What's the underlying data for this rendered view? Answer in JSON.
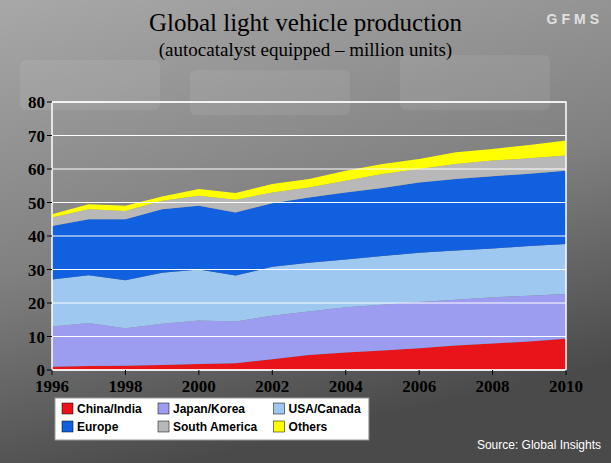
{
  "chart_data": {
    "type": "area",
    "title": "Global light vehicle production",
    "subtitle": "(autocatalyst equipped – million units)",
    "logo": "GFMS",
    "source": "Source: Global Insights",
    "stacked": true,
    "grid": true,
    "legend": "bottom",
    "x": [
      1996,
      1997,
      1998,
      1999,
      2000,
      2001,
      2002,
      2003,
      2004,
      2005,
      2006,
      2007,
      2008,
      2009,
      2010
    ],
    "xlim": [
      1996,
      2010
    ],
    "xticks": [
      1996,
      1998,
      2000,
      2002,
      2004,
      2006,
      2008,
      2010
    ],
    "ylim": [
      0,
      80
    ],
    "yticks": [
      0,
      10,
      20,
      30,
      40,
      50,
      60,
      70,
      80
    ],
    "series": [
      {
        "name": "China/India",
        "color": "#e8141a",
        "values": [
          1,
          1.2,
          1.3,
          1.5,
          1.8,
          2,
          3.2,
          4.5,
          5.2,
          5.8,
          6.5,
          7.3,
          7.9,
          8.5,
          9.3
        ]
      },
      {
        "name": "Japan/Korea",
        "color": "#9c9cf0",
        "values": [
          12,
          12.8,
          11.2,
          12.3,
          13,
          12.5,
          13,
          13,
          13.5,
          13.7,
          13.8,
          13.7,
          13.8,
          13.7,
          13.4
        ]
      },
      {
        "name": "USA/Canada",
        "color": "#9ec8f0",
        "values": [
          14,
          14.3,
          14.3,
          15.2,
          15.2,
          13.7,
          14.6,
          14.5,
          14.3,
          14.5,
          14.7,
          14.7,
          14.6,
          14.8,
          14.9
        ]
      },
      {
        "name": "Europe",
        "color": "#1060e0",
        "values": [
          16,
          16.7,
          18.2,
          19,
          19,
          18.8,
          19,
          19.5,
          20,
          20.3,
          21,
          21.3,
          21.5,
          21.6,
          21.9
        ]
      },
      {
        "name": "South America",
        "color": "#b8b8b8",
        "values": [
          2.5,
          3,
          2.5,
          2.5,
          3,
          3.8,
          3.2,
          3,
          3.5,
          4.2,
          4,
          4.5,
          4.7,
          4.6,
          4.5
        ]
      },
      {
        "name": "Others",
        "color": "#ffff00",
        "values": [
          1,
          1.5,
          1.5,
          1.3,
          2,
          2,
          2.5,
          2.5,
          3,
          3,
          3,
          3.5,
          3.5,
          4,
          4.5
        ]
      }
    ]
  }
}
